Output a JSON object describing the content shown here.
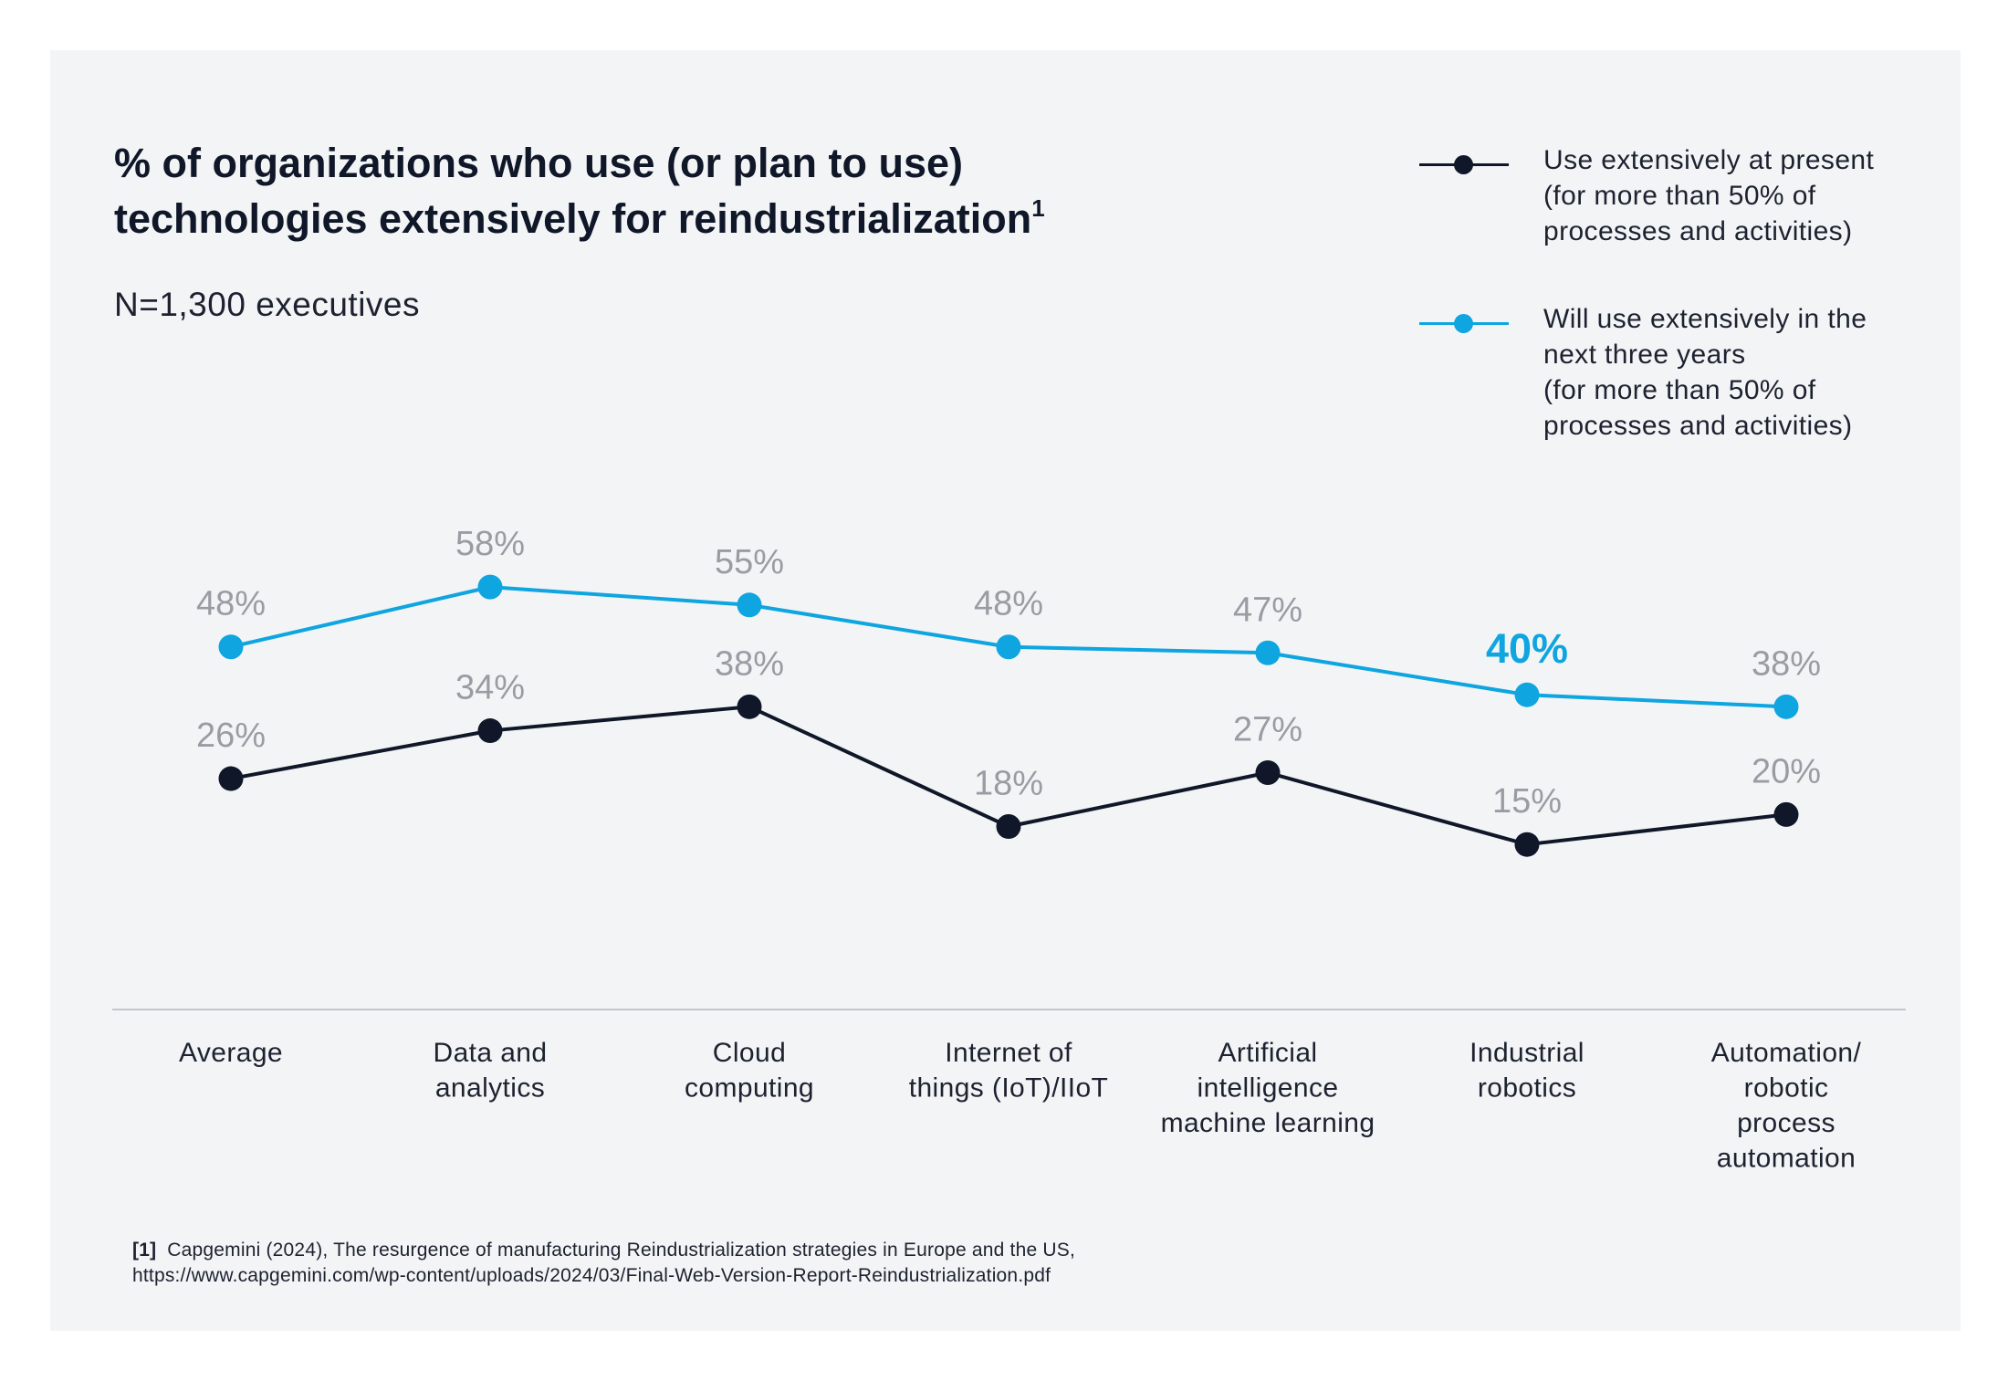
{
  "title": {
    "lines": [
      "% of organizations who use (or plan to use)",
      "technologies extensively for reindustrialization"
    ],
    "superscript": "1"
  },
  "subtitle": "N=1,300 executives",
  "colors": {
    "background": "#f3f4f6",
    "present": "#0f1728",
    "future": "#0ea5e0",
    "label": "#999da3",
    "highlight": "#0ea5e0",
    "axis": "#c4c6ca"
  },
  "legend": {
    "items": [
      {
        "series": "present",
        "lines": [
          "Use extensively at present",
          "(for more than 50% of",
          "processes and activities)"
        ]
      },
      {
        "series": "future",
        "lines": [
          "Will use extensively in the",
          "next three years",
          "(for more than 50% of",
          "processes and activities)"
        ]
      }
    ]
  },
  "chart_data": {
    "type": "line",
    "categories": [
      [
        "Average"
      ],
      [
        "Data and",
        "analytics"
      ],
      [
        "Cloud",
        "computing"
      ],
      [
        "Internet of",
        "things (IoT)/IIoT"
      ],
      [
        "Artificial",
        "intelligence",
        "machine learning"
      ],
      [
        "Industrial",
        "robotics"
      ],
      [
        "Automation/",
        "robotic",
        "process",
        "automation"
      ]
    ],
    "series": [
      {
        "name": "Will use extensively in the next three years (for more than 50% of processes and activities)",
        "key": "future",
        "values": [
          48,
          58,
          55,
          48,
          47,
          40,
          38
        ],
        "labels": [
          "48%",
          "58%",
          "55%",
          "48%",
          "47%",
          "40%",
          "38%"
        ],
        "highlight_index": 5
      },
      {
        "name": "Use extensively at present (for more than 50% of processes and activities)",
        "key": "present",
        "values": [
          26,
          34,
          38,
          18,
          27,
          15,
          20
        ],
        "labels": [
          "26%",
          "34%",
          "38%",
          "18%",
          "27%",
          "15%",
          "20%"
        ]
      }
    ],
    "unit": "%",
    "grid": false,
    "legend_position": "top-right"
  },
  "footnote": {
    "marker": "[1]",
    "lines": [
      "Capgemini (2024), The resurgence of manufacturing Reindustrialization strategies in Europe and the US,",
      "https://www.capgemini.com/wp-content/uploads/2024/03/Final-Web-Version-Report-Reindustrialization.pdf"
    ]
  }
}
